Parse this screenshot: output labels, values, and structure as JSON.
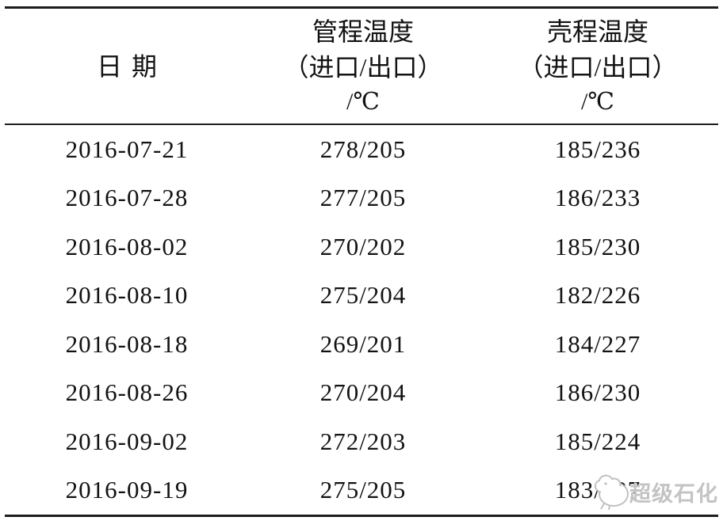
{
  "table": {
    "header": {
      "date": "日期",
      "tube_lines": [
        "管程温度",
        "（进口/出口）",
        "/℃"
      ],
      "shell_lines": [
        "壳程温度",
        "（进口/出口）",
        "/℃"
      ]
    },
    "rows": [
      [
        "2016-07-21",
        "278/205",
        "185/236"
      ],
      [
        "2016-07-28",
        "277/205",
        "186/233"
      ],
      [
        "2016-08-02",
        "270/202",
        "185/230"
      ],
      [
        "2016-08-10",
        "275/204",
        "182/226"
      ],
      [
        "2016-08-18",
        "269/201",
        "184/227"
      ],
      [
        "2016-08-26",
        "270/204",
        "186/230"
      ],
      [
        "2016-09-02",
        "272/203",
        "185/224"
      ],
      [
        "2016-09-19",
        "275/205",
        "183/227"
      ]
    ]
  },
  "watermark": {
    "text": "超级石化",
    "icon": "bird-logo-icon"
  },
  "colors": {
    "text": "#121212",
    "line": "#1c1c1c",
    "watermark": "#c3c3c3",
    "background": "#ffffff"
  }
}
